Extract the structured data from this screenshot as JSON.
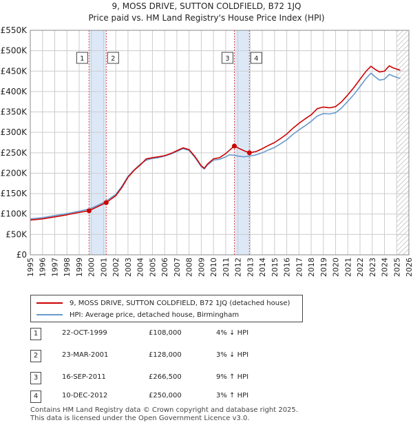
{
  "title": {
    "line1": "9, MOSS DRIVE, SUTTON COLDFIELD, B72 1JQ",
    "line2": "Price paid vs. HM Land Registry's House Price Index (HPI)"
  },
  "colors": {
    "price": "#cc0000",
    "hpi": "#6699cc",
    "shade": "#dde8f7",
    "marker_line": "#dd4444",
    "grid": "#cccccc"
  },
  "chart_data": {
    "type": "line",
    "title": "Price paid vs. HM Land Registry's House Price Index (HPI)",
    "xlabel": "",
    "ylabel": "",
    "xlim": [
      1995,
      2026
    ],
    "ylim": [
      0,
      550000
    ],
    "yticks": [
      0,
      50000,
      100000,
      150000,
      200000,
      250000,
      300000,
      350000,
      400000,
      450000,
      500000,
      550000
    ],
    "ytick_labels": [
      "£0",
      "£50K",
      "£100K",
      "£150K",
      "£200K",
      "£250K",
      "£300K",
      "£350K",
      "£400K",
      "£450K",
      "£500K",
      "£550K"
    ],
    "xticks": [
      "1995",
      "1996",
      "1997",
      "1998",
      "1999",
      "2000",
      "2001",
      "2002",
      "2003",
      "2004",
      "2005",
      "2006",
      "2007",
      "2008",
      "2009",
      "2010",
      "2011",
      "2012",
      "2013",
      "2014",
      "2015",
      "2016",
      "2017",
      "2018",
      "2019",
      "2020",
      "2021",
      "2022",
      "2023",
      "2024",
      "2025",
      "2026"
    ],
    "grid": true,
    "series": [
      {
        "name": "9, MOSS DRIVE, SUTTON COLDFIELD, B72 1JQ (detached house)",
        "color": "#cc0000",
        "x": [
          1995.0,
          1996.0,
          1997.0,
          1998.0,
          1999.0,
          1999.81,
          2000.5,
          2001.22,
          2002.0,
          2002.5,
          2003.0,
          2003.5,
          2004.0,
          2004.5,
          2005.0,
          2005.5,
          2006.0,
          2006.5,
          2007.0,
          2007.5,
          2008.0,
          2008.5,
          2009.0,
          2009.25,
          2009.5,
          2010.0,
          2010.5,
          2011.0,
          2011.3,
          2011.71,
          2012.0,
          2012.5,
          2012.94,
          2013.5,
          2014.0,
          2014.5,
          2015.0,
          2015.5,
          2016.0,
          2016.5,
          2017.0,
          2017.5,
          2018.0,
          2018.5,
          2019.0,
          2019.5,
          2020.0,
          2020.5,
          2021.0,
          2021.5,
          2022.0,
          2022.5,
          2022.9,
          2023.2,
          2023.6,
          2024.0,
          2024.4,
          2024.7,
          2025.0,
          2025.3
        ],
        "values": [
          85000,
          88000,
          93000,
          98000,
          104000,
          108000,
          118000,
          128000,
          145000,
          165000,
          190000,
          207000,
          220000,
          235000,
          238000,
          240000,
          243000,
          248000,
          255000,
          262000,
          258000,
          240000,
          218000,
          212000,
          222000,
          235000,
          238000,
          248000,
          256000,
          266500,
          262000,
          255000,
          250000,
          253000,
          260000,
          268000,
          275000,
          285000,
          296000,
          310000,
          322000,
          333000,
          343000,
          358000,
          362000,
          360000,
          363000,
          375000,
          392000,
          410000,
          430000,
          450000,
          462000,
          455000,
          448000,
          450000,
          463000,
          458000,
          455000,
          452000
        ]
      },
      {
        "name": "HPI: Average price, detached house, Birmingham",
        "color": "#6699cc",
        "x": [
          1995.0,
          1996.0,
          1997.0,
          1998.0,
          1999.0,
          1999.81,
          2000.5,
          2001.22,
          2002.0,
          2002.5,
          2003.0,
          2003.5,
          2004.0,
          2004.5,
          2005.0,
          2005.5,
          2006.0,
          2006.5,
          2007.0,
          2007.5,
          2008.0,
          2008.5,
          2009.0,
          2009.25,
          2009.5,
          2010.0,
          2010.5,
          2011.0,
          2011.3,
          2011.71,
          2012.0,
          2012.5,
          2012.94,
          2013.5,
          2014.0,
          2014.5,
          2015.0,
          2015.5,
          2016.0,
          2016.5,
          2017.0,
          2017.5,
          2018.0,
          2018.5,
          2019.0,
          2019.5,
          2020.0,
          2020.5,
          2021.0,
          2021.5,
          2022.0,
          2022.5,
          2022.9,
          2023.2,
          2023.6,
          2024.0,
          2024.4,
          2024.7,
          2025.0,
          2025.3
        ],
        "values": [
          88000,
          91000,
          96000,
          101000,
          107000,
          112000,
          121000,
          132000,
          148000,
          168000,
          192000,
          208000,
          222000,
          232000,
          236000,
          238000,
          242000,
          247000,
          253000,
          260000,
          256000,
          238000,
          216000,
          210000,
          220000,
          232000,
          234000,
          240000,
          245000,
          244000,
          242000,
          240000,
          242000,
          245000,
          250000,
          257000,
          263000,
          272000,
          282000,
          295000,
          306000,
          316000,
          327000,
          340000,
          346000,
          345000,
          348000,
          360000,
          376000,
          393000,
          412000,
          432000,
          445000,
          437000,
          428000,
          430000,
          442000,
          438000,
          435000,
          432000
        ]
      }
    ],
    "transactions": [
      {
        "num": "1",
        "x": 1999.81,
        "value": 108000
      },
      {
        "num": "2",
        "x": 2001.22,
        "value": 128000
      },
      {
        "num": "3",
        "x": 2011.71,
        "value": 266500
      },
      {
        "num": "4",
        "x": 2012.94,
        "value": 250000
      }
    ],
    "shaded_ranges": [
      [
        1999.81,
        2001.22
      ],
      [
        2011.71,
        2012.94
      ]
    ],
    "hatched_from": 2025.0
  },
  "legend": {
    "price_label": "9, MOSS DRIVE, SUTTON COLDFIELD, B72 1JQ (detached house)",
    "hpi_label": "HPI: Average price, detached house, Birmingham"
  },
  "transactions_table": [
    {
      "num": "1",
      "date": "22-OCT-1999",
      "price": "£108,000",
      "hpi": "4% ↓ HPI"
    },
    {
      "num": "2",
      "date": "23-MAR-2001",
      "price": "£128,000",
      "hpi": "3% ↓ HPI"
    },
    {
      "num": "3",
      "date": "16-SEP-2011",
      "price": "£266,500",
      "hpi": "9% ↑ HPI"
    },
    {
      "num": "4",
      "date": "10-DEC-2012",
      "price": "£250,000",
      "hpi": "3% ↑ HPI"
    }
  ],
  "footer": {
    "line1": "Contains HM Land Registry data © Crown copyright and database right 2025.",
    "line2": "This data is licensed under the Open Government Licence v3.0."
  }
}
